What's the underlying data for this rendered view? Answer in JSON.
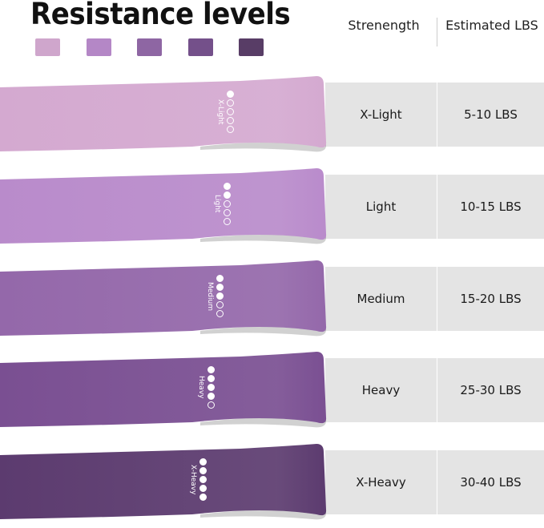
{
  "title": "Resistance levels",
  "swatches": [
    "#cfa6cc",
    "#b487c6",
    "#8e66a3",
    "#74508a",
    "#583d66"
  ],
  "headers": {
    "strength": "Strenength",
    "lbs": "Estimated LBS"
  },
  "levels": [
    {
      "name": "X-Light",
      "band_label": "X-Light",
      "lbs": "5-10  LBS",
      "filled": 1,
      "color": "#d4a9d0"
    },
    {
      "name": "Light",
      "band_label": "Light",
      "lbs": "10-15 LBS",
      "filled": 2,
      "color": "#b98bcb"
    },
    {
      "name": "Medium",
      "band_label": "Medium",
      "lbs": "15-20 LBS",
      "filled": 3,
      "color": "#9468aa"
    },
    {
      "name": "Heavy",
      "band_label": "Heavy",
      "lbs": "25-30 LBS",
      "filled": 4,
      "color": "#7a4f92"
    },
    {
      "name": "X-Heavy",
      "band_label": "X-Heavy",
      "lbs": "30-40 LBS",
      "filled": 5,
      "color": "#5c3b6f"
    }
  ]
}
